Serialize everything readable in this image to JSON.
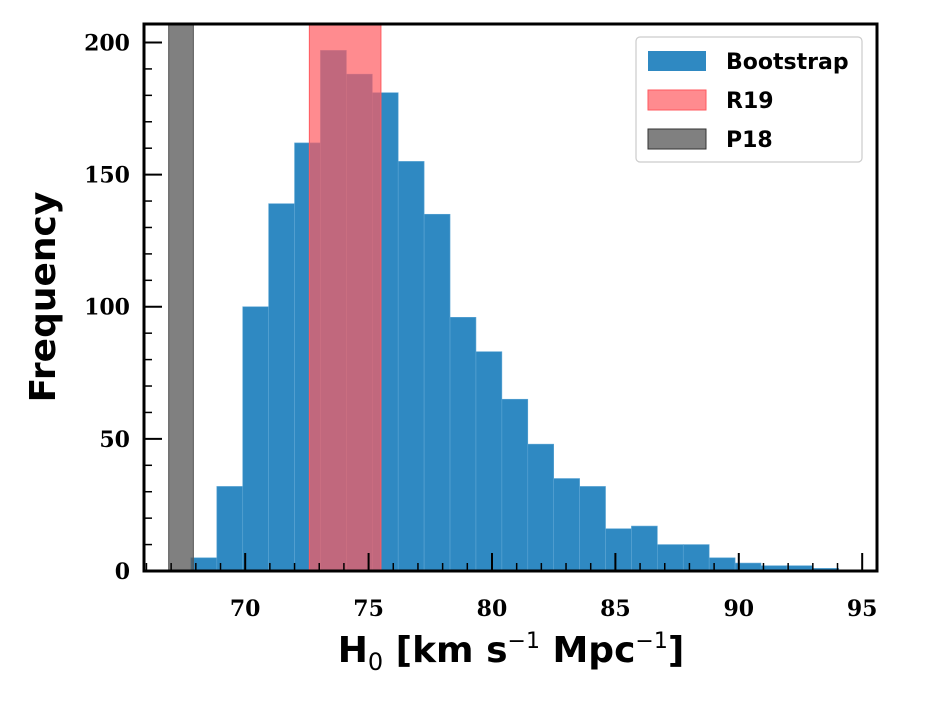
{
  "chart_data": {
    "type": "bar",
    "xlabel": {
      "main": "H",
      "sub": "0",
      "part1": " [km s",
      "sup1": "−1",
      "part2": " Mpc",
      "sup2": "−1",
      "part3": "]"
    },
    "ylabel": "Frequency",
    "xlim": [
      65.9,
      95.6
    ],
    "ylim": [
      0,
      207
    ],
    "xticks": [
      70,
      75,
      80,
      85,
      90,
      95
    ],
    "yticks": [
      0,
      50,
      100,
      150,
      200
    ],
    "legend_position": "top-right",
    "series": [
      {
        "name": "Bootstrap",
        "color": "#2f89c2",
        "bin_width": 1.05,
        "bin_starts": [
          67.8,
          68.85,
          69.9,
          70.95,
          72.0,
          73.05,
          74.1,
          75.15,
          76.2,
          77.25,
          78.3,
          79.35,
          80.4,
          81.45,
          82.5,
          83.55,
          84.6,
          85.65,
          86.7,
          87.75,
          88.8,
          89.85,
          90.9,
          91.95,
          93.0
        ],
        "values": [
          5,
          32,
          100,
          139,
          162,
          197,
          188,
          181,
          155,
          135,
          96,
          83,
          65,
          48,
          35,
          32,
          16,
          17,
          10,
          10,
          5,
          3,
          2,
          2,
          1
        ]
      }
    ],
    "bands": [
      {
        "name": "R19",
        "x_range": [
          72.6,
          75.5
        ],
        "color": "#ff5a5f",
        "opacity": 0.7
      },
      {
        "name": "P18",
        "x_range": [
          66.9,
          67.9
        ],
        "color": "#555555",
        "opacity": 0.75
      }
    ],
    "legend": [
      "Bootstrap",
      "R19",
      "P18"
    ]
  }
}
